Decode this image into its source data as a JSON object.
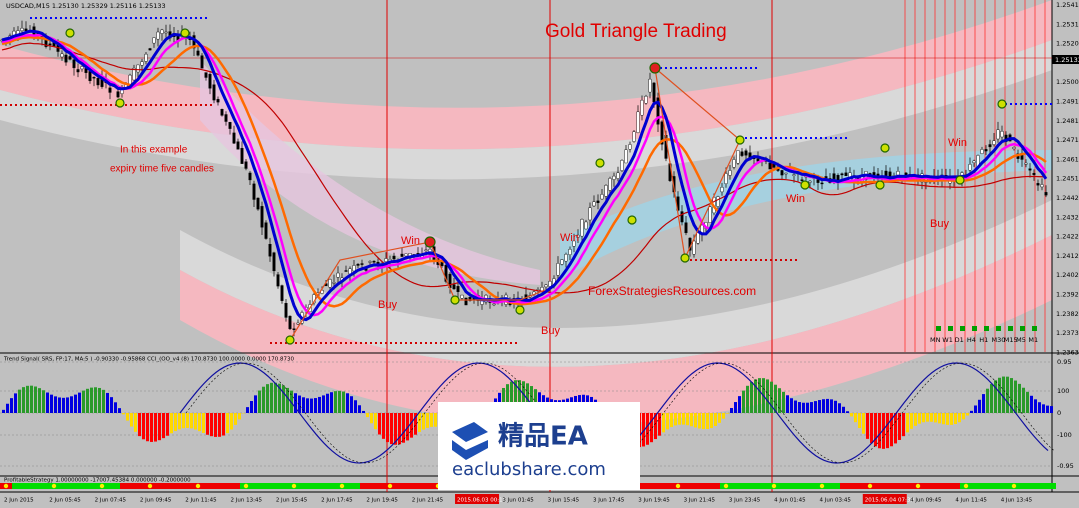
{
  "header": {
    "symbol": "USDCAD,M15 1.25130 1.25329 1.25116 1.25133",
    "title": "Gold Triangle Trading",
    "site": "ForexStrategiesResources.com",
    "note": [
      "In this example",
      "expiry time five candles"
    ]
  },
  "annotations": [
    "Win",
    "Win",
    "Win",
    "Win",
    "Buy",
    "Buy",
    "Buy"
  ],
  "price_axis": {
    "labels": [
      "1.25410",
      "1.25310",
      "1.25205",
      "1.25005",
      "1.24910",
      "1.24815",
      "1.24710",
      "1.24615",
      "1.24515",
      "1.24420",
      "1.24320",
      "1.24225",
      "1.24125",
      "1.24025",
      "1.23925",
      "1.23825",
      "1.23730",
      "1.23630"
    ],
    "current": "1.25133"
  },
  "timeframes": [
    "MN",
    "W1",
    "D1",
    "H4",
    "H1",
    "M30",
    "M15",
    "M5",
    "M1"
  ],
  "indicator": {
    "label": "Trend Signal( SRS, FP:17, MA:5 ) -0.90330 -0.95868  CCI_(OO_v4 (8) 170.8730 100.0000 0.0000 170.8730",
    "levels": [
      "0.95",
      "100",
      "0",
      "-100",
      "-0.95"
    ]
  },
  "strategy": {
    "label": "ProfitableStrategy  1.00000000 -17007.45384 0.000000 -0.2000000"
  },
  "time_axis": [
    "2 Jun 2015",
    "2 Jun 05:45",
    "2 Jun 07:45",
    "2 Jun 09:45",
    "2 Jun 11:45",
    "2 Jun 13:45",
    "2 Jun 15:45",
    "2 Jun 17:45",
    "2 Jun 19:45",
    "2 Jun 21:45",
    "2015.06.03 00:15",
    "3 Jun 01:45",
    "3 Jun 15:45",
    "3 Jun 17:45",
    "3 Jun 19:45",
    "3 Jun 21:45",
    "3 Jun 23:45",
    "4 Jun 01:45",
    "4 Jun 03:45",
    "2015.06.04 07:30",
    "4 Jun 09:45",
    "4 Jun 11:45",
    "4 Jun 13:45"
  ],
  "watermark": {
    "brand": "精品EA",
    "site": "eaclubshare.com"
  }
}
